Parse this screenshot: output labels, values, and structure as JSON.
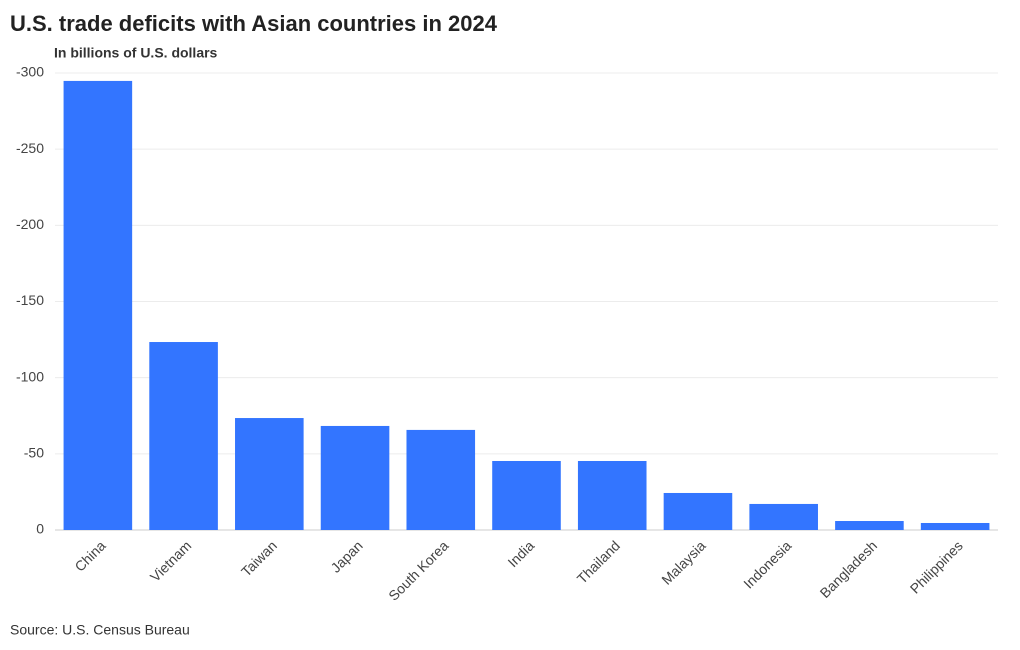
{
  "chart_data": {
    "type": "bar",
    "title": "U.S. trade deficits with Asian countries in 2024",
    "subtitle": "In billions of U.S. dollars",
    "source": "Source: U.S. Census Bureau",
    "categories": [
      "China",
      "Vietnam",
      "Taiwan",
      "Japan",
      "South Korea",
      "India",
      "Thailand",
      "Malaysia",
      "Indonesia",
      "Bangladesh",
      "Philippines"
    ],
    "values": [
      -294.8,
      -123.4,
      -73.5,
      -68.3,
      -65.7,
      -45.3,
      -45.3,
      -24.3,
      -17.1,
      -5.9,
      -4.6
    ],
    "color": "#3375ff",
    "ylim": [
      0,
      -300
    ],
    "yticks": [
      0,
      -50,
      -100,
      -150,
      -200,
      -250,
      -300
    ],
    "grid": true
  }
}
